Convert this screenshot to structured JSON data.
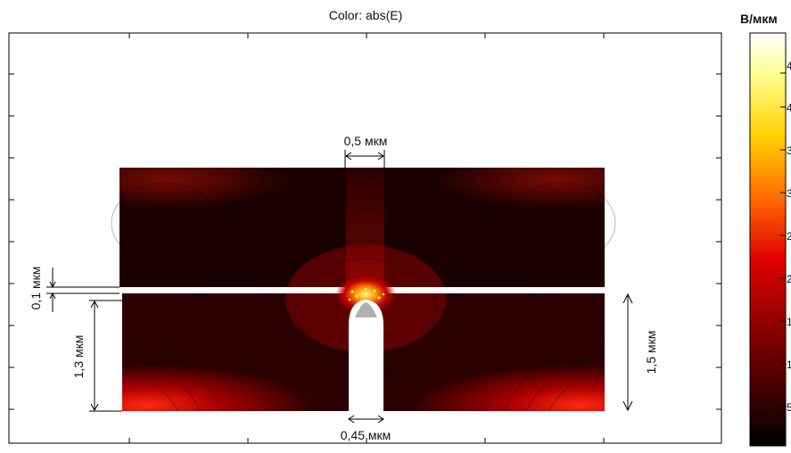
{
  "plot": {
    "title": "Color: abs(E)",
    "colorbar_unit": "В/мкм",
    "colorbar_ticks": [
      "4",
      "4",
      "3",
      "3",
      "2",
      "2",
      "1",
      "1",
      "",
      "5"
    ]
  },
  "dimensions": {
    "slot_width": "0,5 мкм",
    "gap_height": "0,1 мкм",
    "lower_height_left": "1,3 мкм",
    "lower_height_right": "1,5 мкм",
    "tip_width": "0,45 мкм"
  },
  "colors": {
    "field_dark": "#1a0000",
    "field_mid": "#8b0000",
    "field_hot": "#ff3000",
    "field_peak": "#ffff80",
    "tip_gray": "#b0b0b0",
    "frame": "#000000"
  }
}
